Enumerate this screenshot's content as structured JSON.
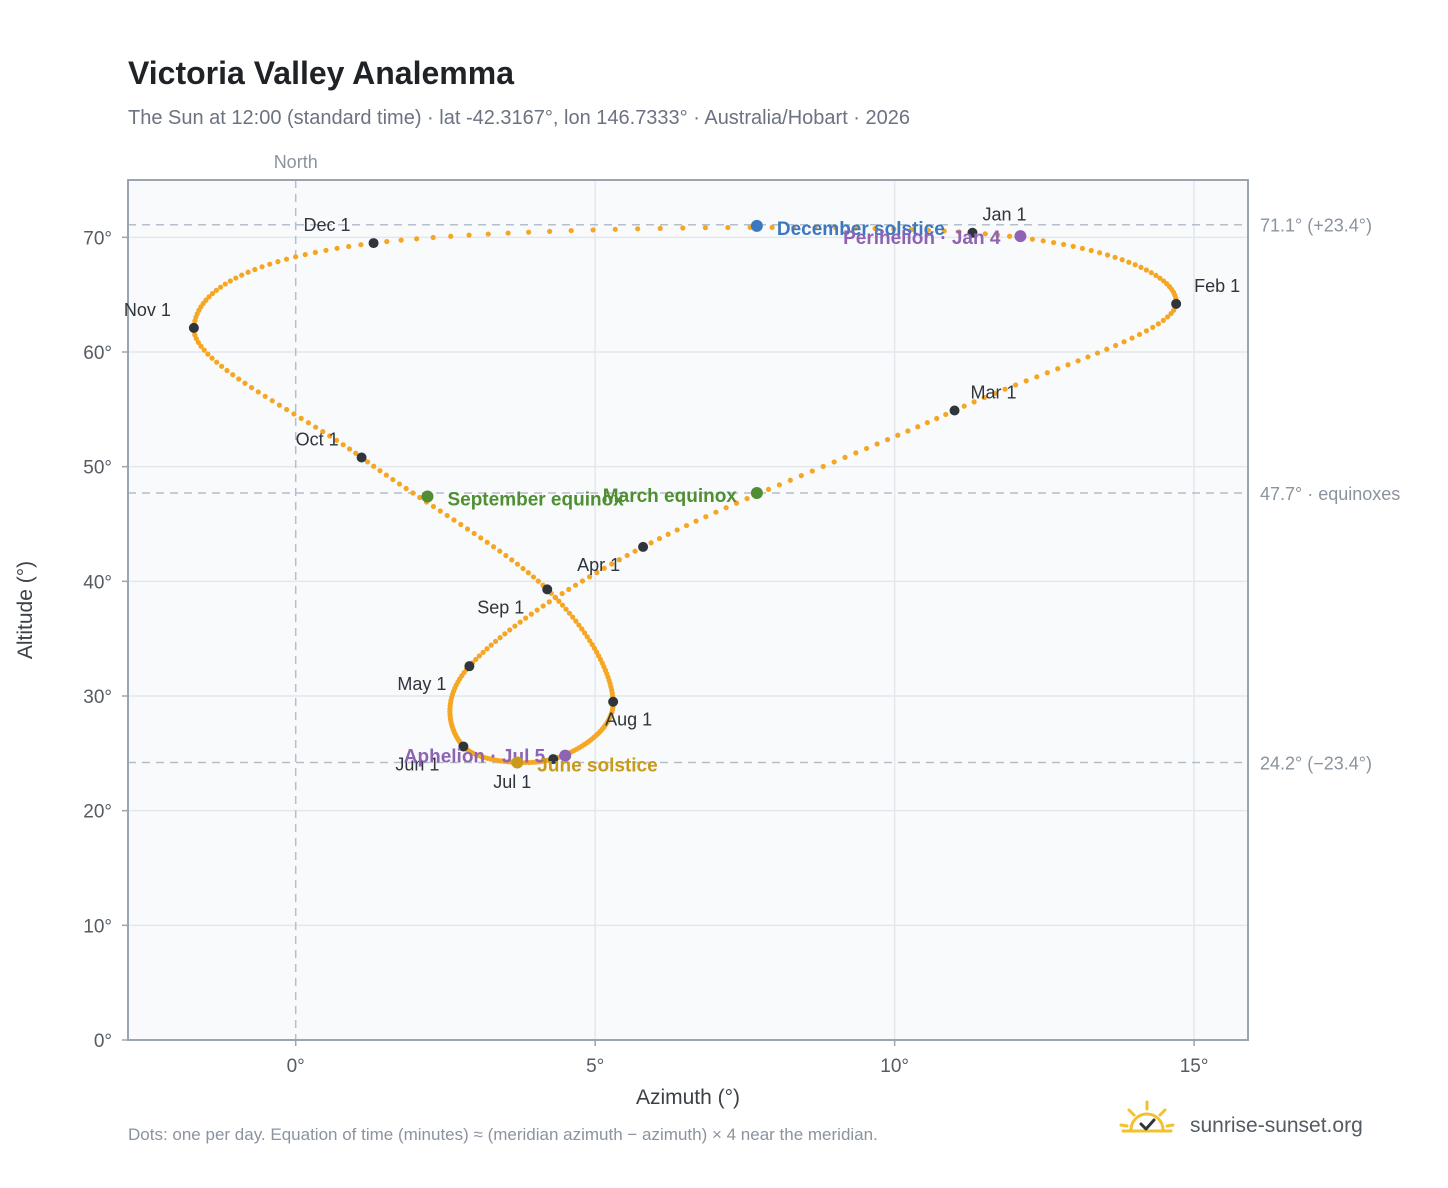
{
  "chart_data": {
    "type": "scatter",
    "title": "Victoria Valley Analemma",
    "subtitle": "The Sun at 12:00 (standard time) · lat -42.3167°, lon 146.7333° · Australia/Hobart · 2026",
    "xlabel": "Azimuth (°)",
    "ylabel": "Altitude (°)",
    "xlim": [
      -2.8,
      15.9
    ],
    "ylim": [
      0,
      75
    ],
    "x_ticks": [
      {
        "value": 0,
        "label": "0°"
      },
      {
        "value": 5,
        "label": "5°"
      },
      {
        "value": 10,
        "label": "10°"
      },
      {
        "value": 15,
        "label": "15°"
      }
    ],
    "y_ticks": [
      {
        "value": 0,
        "label": "0°"
      },
      {
        "value": 10,
        "label": "10°"
      },
      {
        "value": 20,
        "label": "20°"
      },
      {
        "value": 30,
        "label": "30°"
      },
      {
        "value": 40,
        "label": "40°"
      },
      {
        "value": 50,
        "label": "50°"
      },
      {
        "value": 60,
        "label": "60°"
      },
      {
        "value": 70,
        "label": "70°"
      }
    ],
    "grid": true,
    "north_line": {
      "azimuth": 0,
      "label": "North"
    },
    "reference_lines": [
      {
        "altitude": 71.1,
        "label": "71.1° (+23.4°)"
      },
      {
        "altitude": 47.7,
        "label": "47.7° · equinoxes"
      },
      {
        "altitude": 24.2,
        "label": "24.2° (−23.4°)"
      }
    ],
    "daily_path_color": "#f5a623",
    "month_marker_color": "#30353b",
    "series": [
      {
        "kind": "daily-path",
        "points": [
          [
            11.3,
            70.4
          ],
          [
            14.7,
            64.2
          ],
          [
            11.0,
            54.9
          ],
          [
            5.8,
            43.0
          ],
          [
            2.9,
            32.6
          ],
          [
            2.8,
            25.6
          ],
          [
            4.3,
            24.5
          ],
          [
            5.3,
            29.5
          ],
          [
            4.2,
            39.3
          ],
          [
            1.1,
            50.8
          ],
          [
            -1.7,
            62.1
          ],
          [
            1.3,
            69.5
          ]
        ]
      }
    ],
    "month_markers": [
      {
        "label": "Jan 1",
        "azimuth": 11.3,
        "altitude": 70.4
      },
      {
        "label": "Feb 1",
        "azimuth": 14.7,
        "altitude": 64.2
      },
      {
        "label": "Mar 1",
        "azimuth": 11.0,
        "altitude": 54.9
      },
      {
        "label": "Apr 1",
        "azimuth": 5.8,
        "altitude": 43.0
      },
      {
        "label": "May 1",
        "azimuth": 2.9,
        "altitude": 32.6
      },
      {
        "label": "Jun 1",
        "azimuth": 2.8,
        "altitude": 25.6
      },
      {
        "label": "Jul 1",
        "azimuth": 4.3,
        "altitude": 24.5
      },
      {
        "label": "Aug 1",
        "azimuth": 5.3,
        "altitude": 29.5
      },
      {
        "label": "Sep 1",
        "azimuth": 4.2,
        "altitude": 39.3
      },
      {
        "label": "Oct 1",
        "azimuth": 1.1,
        "altitude": 50.8
      },
      {
        "label": "Nov 1",
        "azimuth": -1.7,
        "altitude": 62.1
      },
      {
        "label": "Dec 1",
        "azimuth": 1.3,
        "altitude": 69.5
      }
    ],
    "events": [
      {
        "label": "December solstice",
        "azimuth": 7.7,
        "altitude": 71.0,
        "color": "#3a78c0"
      },
      {
        "label": "Perihelion · Jan 4",
        "azimuth": 12.1,
        "altitude": 70.1,
        "color": "#8e63b4"
      },
      {
        "label": "March equinox",
        "azimuth": 7.7,
        "altitude": 47.7,
        "color": "#4f8f32"
      },
      {
        "label": "September equinox",
        "azimuth": 2.2,
        "altitude": 47.4,
        "color": "#4f8f32"
      },
      {
        "label": "Aphelion · Jul 5",
        "azimuth": 4.5,
        "altitude": 24.8,
        "color": "#8e63b4"
      },
      {
        "label": "June solstice",
        "azimuth": 3.7,
        "altitude": 24.2,
        "color": "#c99a1a"
      }
    ]
  },
  "footer": {
    "note": "Dots: one per day. Equation of time (minutes) ≈ (meridian azimuth − azimuth) × 4 near the meridian.",
    "brand": "sunrise-sunset.org",
    "brand_icon": "sun-icon"
  }
}
